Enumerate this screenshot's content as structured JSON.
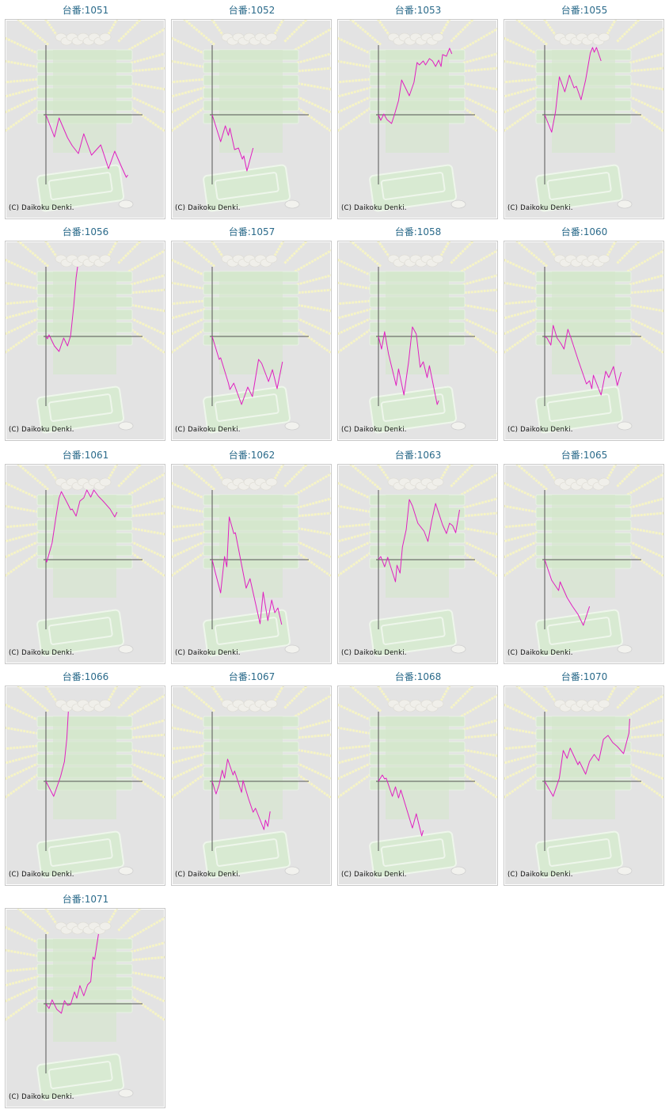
{
  "copyright": "(C) Daikoku Denki.",
  "colors": {
    "line": "#e020c0",
    "axis": "#555555",
    "title": "#2a6a8a"
  },
  "chart_data": {
    "type": "line",
    "xlim": [
      0,
      6250
    ],
    "ylim": [
      -4400,
      4400
    ],
    "charts": [
      {
        "title": "台番:1051",
        "points": [
          [
            0,
            0
          ],
          [
            550,
            -1400
          ],
          [
            850,
            -200
          ],
          [
            1400,
            -1450
          ],
          [
            1700,
            -1950
          ],
          [
            2100,
            -2450
          ],
          [
            2450,
            -1200
          ],
          [
            2950,
            -2550
          ],
          [
            3550,
            -1900
          ],
          [
            4050,
            -3400
          ],
          [
            4450,
            -2300
          ],
          [
            4900,
            -3300
          ],
          [
            5200,
            -3950
          ],
          [
            5300,
            -3800
          ]
        ]
      },
      {
        "title": "台番:1052",
        "points": [
          [
            0,
            0
          ],
          [
            550,
            -1700
          ],
          [
            850,
            -700
          ],
          [
            1050,
            -1300
          ],
          [
            1150,
            -850
          ],
          [
            1450,
            -2200
          ],
          [
            1700,
            -2100
          ],
          [
            1950,
            -2800
          ],
          [
            2050,
            -2600
          ],
          [
            2250,
            -3550
          ],
          [
            2650,
            -2100
          ]
        ]
      },
      {
        "title": "台番:1053",
        "points": [
          [
            0,
            0
          ],
          [
            150,
            -350
          ],
          [
            350,
            50
          ],
          [
            550,
            -300
          ],
          [
            850,
            -550
          ],
          [
            1050,
            50
          ],
          [
            1300,
            900
          ],
          [
            1500,
            2200
          ],
          [
            2000,
            1200
          ],
          [
            2300,
            2050
          ],
          [
            2500,
            3300
          ],
          [
            2650,
            3150
          ],
          [
            2900,
            3400
          ],
          [
            3050,
            3150
          ],
          [
            3300,
            3550
          ],
          [
            3500,
            3400
          ],
          [
            3700,
            3050
          ],
          [
            3900,
            3450
          ],
          [
            4050,
            3050
          ],
          [
            4150,
            3800
          ],
          [
            4400,
            3700
          ],
          [
            4600,
            4200
          ],
          [
            4750,
            3850
          ]
        ]
      },
      {
        "title": "台番:1055",
        "points": [
          [
            0,
            0
          ],
          [
            450,
            -1100
          ],
          [
            700,
            200
          ],
          [
            950,
            2400
          ],
          [
            1300,
            1450
          ],
          [
            1600,
            2500
          ],
          [
            1900,
            1700
          ],
          [
            2050,
            1800
          ],
          [
            2350,
            950
          ],
          [
            2650,
            2200
          ],
          [
            2950,
            3900
          ],
          [
            3100,
            4250
          ],
          [
            3200,
            3950
          ],
          [
            3350,
            4250
          ],
          [
            3650,
            3400
          ]
        ]
      },
      {
        "title": "台番:1056",
        "points": [
          [
            0,
            0
          ],
          [
            100,
            -150
          ],
          [
            200,
            100
          ],
          [
            550,
            -600
          ],
          [
            850,
            -950
          ],
          [
            1150,
            -100
          ],
          [
            1400,
            -600
          ],
          [
            1600,
            50
          ],
          [
            1800,
            1900
          ],
          [
            1950,
            3700
          ],
          [
            2050,
            4400
          ]
        ]
      },
      {
        "title": "台番:1057",
        "points": [
          [
            0,
            0
          ],
          [
            450,
            -1450
          ],
          [
            550,
            -1350
          ],
          [
            1050,
            -2950
          ],
          [
            1150,
            -3350
          ],
          [
            1400,
            -2950
          ],
          [
            1900,
            -4300
          ],
          [
            2300,
            -3200
          ],
          [
            2600,
            -3800
          ],
          [
            3000,
            -1450
          ],
          [
            3200,
            -1700
          ],
          [
            3650,
            -2850
          ],
          [
            3900,
            -2100
          ],
          [
            4200,
            -3300
          ],
          [
            4550,
            -1600
          ]
        ]
      },
      {
        "title": "台番:1058",
        "points": [
          [
            0,
            0
          ],
          [
            200,
            -800
          ],
          [
            400,
            300
          ],
          [
            650,
            -1100
          ],
          [
            1150,
            -3100
          ],
          [
            1300,
            -2050
          ],
          [
            1650,
            -3700
          ],
          [
            1950,
            -1600
          ],
          [
            2200,
            600
          ],
          [
            2450,
            150
          ],
          [
            2700,
            -1950
          ],
          [
            2900,
            -1600
          ],
          [
            3150,
            -2600
          ],
          [
            3300,
            -1850
          ],
          [
            3800,
            -4300
          ],
          [
            3900,
            -4050
          ]
        ]
      },
      {
        "title": "台番:1060",
        "points": [
          [
            0,
            0
          ],
          [
            150,
            -100
          ],
          [
            400,
            -550
          ],
          [
            550,
            700
          ],
          [
            800,
            -100
          ],
          [
            1050,
            -450
          ],
          [
            1250,
            -800
          ],
          [
            1500,
            450
          ],
          [
            1700,
            -100
          ],
          [
            2150,
            -1450
          ],
          [
            2700,
            -3000
          ],
          [
            2900,
            -2800
          ],
          [
            3050,
            -3300
          ],
          [
            3150,
            -2450
          ],
          [
            3650,
            -3700
          ],
          [
            3950,
            -2200
          ],
          [
            4150,
            -2600
          ],
          [
            4450,
            -1900
          ],
          [
            4700,
            -3100
          ],
          [
            4950,
            -2250
          ]
        ]
      },
      {
        "title": "台番:1061",
        "points": [
          [
            0,
            0
          ],
          [
            50,
            -150
          ],
          [
            400,
            1050
          ],
          [
            650,
            2700
          ],
          [
            850,
            3900
          ],
          [
            1000,
            4300
          ],
          [
            1400,
            3550
          ],
          [
            1600,
            3150
          ],
          [
            1700,
            3200
          ],
          [
            1950,
            2750
          ],
          [
            2200,
            3700
          ],
          [
            2450,
            3900
          ],
          [
            2650,
            4400
          ],
          [
            2900,
            3950
          ],
          [
            3100,
            4400
          ],
          [
            3400,
            4000
          ],
          [
            3700,
            3700
          ],
          [
            4150,
            3200
          ],
          [
            4450,
            2700
          ],
          [
            4600,
            3000
          ]
        ]
      },
      {
        "title": "台番:1062",
        "points": [
          [
            0,
            0
          ],
          [
            200,
            -800
          ],
          [
            550,
            -2100
          ],
          [
            800,
            200
          ],
          [
            950,
            -450
          ],
          [
            1100,
            2700
          ],
          [
            1400,
            1650
          ],
          [
            1500,
            1700
          ],
          [
            2200,
            -1800
          ],
          [
            2450,
            -1200
          ],
          [
            3100,
            -4050
          ],
          [
            3300,
            -2050
          ],
          [
            3600,
            -3850
          ],
          [
            3850,
            -2550
          ],
          [
            4050,
            -3350
          ],
          [
            4250,
            -3050
          ],
          [
            4500,
            -4100
          ]
        ]
      },
      {
        "title": "台番:1063",
        "points": [
          [
            0,
            0
          ],
          [
            150,
            200
          ],
          [
            400,
            -450
          ],
          [
            600,
            150
          ],
          [
            1100,
            -1400
          ],
          [
            1200,
            -350
          ],
          [
            1400,
            -850
          ],
          [
            1550,
            800
          ],
          [
            1800,
            1900
          ],
          [
            2000,
            3800
          ],
          [
            2200,
            3400
          ],
          [
            2550,
            2300
          ],
          [
            2950,
            1800
          ],
          [
            3200,
            1150
          ],
          [
            3450,
            2450
          ],
          [
            3700,
            3550
          ],
          [
            4150,
            2200
          ],
          [
            4400,
            1650
          ],
          [
            4600,
            2300
          ],
          [
            4800,
            2150
          ],
          [
            5000,
            1700
          ],
          [
            5250,
            3150
          ]
        ]
      },
      {
        "title": "台番:1065",
        "points": [
          [
            0,
            0
          ],
          [
            450,
            -1300
          ],
          [
            900,
            -1950
          ],
          [
            1000,
            -1400
          ],
          [
            1450,
            -2400
          ],
          [
            1800,
            -2950
          ],
          [
            2150,
            -3450
          ],
          [
            2500,
            -4150
          ],
          [
            2900,
            -2950
          ]
        ]
      },
      {
        "title": "台番:1066",
        "points": [
          [
            0,
            0
          ],
          [
            500,
            -950
          ],
          [
            950,
            300
          ],
          [
            1200,
            1250
          ],
          [
            1350,
            2700
          ],
          [
            1450,
            4400
          ]
        ]
      },
      {
        "title": "台番:1067",
        "points": [
          [
            0,
            0
          ],
          [
            250,
            -800
          ],
          [
            450,
            -200
          ],
          [
            650,
            700
          ],
          [
            800,
            200
          ],
          [
            1000,
            1400
          ],
          [
            1350,
            400
          ],
          [
            1450,
            650
          ],
          [
            1900,
            -700
          ],
          [
            2000,
            50
          ],
          [
            2350,
            -1100
          ],
          [
            2650,
            -1950
          ],
          [
            2800,
            -1700
          ],
          [
            3350,
            -3050
          ],
          [
            3450,
            -2450
          ],
          [
            3600,
            -2850
          ],
          [
            3750,
            -1900
          ]
        ]
      },
      {
        "title": "台番:1068",
        "points": [
          [
            0,
            0
          ],
          [
            250,
            400
          ],
          [
            400,
            150
          ],
          [
            500,
            200
          ],
          [
            900,
            -950
          ],
          [
            1100,
            -350
          ],
          [
            1300,
            -1050
          ],
          [
            1450,
            -550
          ],
          [
            2200,
            -2950
          ],
          [
            2450,
            -2050
          ],
          [
            2800,
            -3450
          ],
          [
            2900,
            -3100
          ]
        ]
      },
      {
        "title": "台番:1070",
        "points": [
          [
            0,
            0
          ],
          [
            550,
            -950
          ],
          [
            950,
            200
          ],
          [
            1200,
            1950
          ],
          [
            1450,
            1450
          ],
          [
            1650,
            2100
          ],
          [
            2150,
            1050
          ],
          [
            2250,
            1250
          ],
          [
            2650,
            450
          ],
          [
            2900,
            1250
          ],
          [
            3200,
            1700
          ],
          [
            3500,
            1300
          ],
          [
            3800,
            2650
          ],
          [
            4100,
            2900
          ],
          [
            4400,
            2450
          ],
          [
            4700,
            2200
          ],
          [
            5100,
            1750
          ],
          [
            5450,
            3050
          ],
          [
            5500,
            3950
          ]
        ]
      },
      {
        "title": "台番:1071",
        "points": [
          [
            0,
            0
          ],
          [
            200,
            -300
          ],
          [
            400,
            250
          ],
          [
            700,
            -350
          ],
          [
            1000,
            -600
          ],
          [
            1200,
            200
          ],
          [
            1400,
            -100
          ],
          [
            1600,
            -50
          ],
          [
            1850,
            750
          ],
          [
            2000,
            350
          ],
          [
            2200,
            1150
          ],
          [
            2450,
            500
          ],
          [
            2700,
            1200
          ],
          [
            2900,
            1400
          ],
          [
            3050,
            2950
          ],
          [
            3150,
            2800
          ],
          [
            3400,
            4400
          ]
        ]
      }
    ]
  }
}
